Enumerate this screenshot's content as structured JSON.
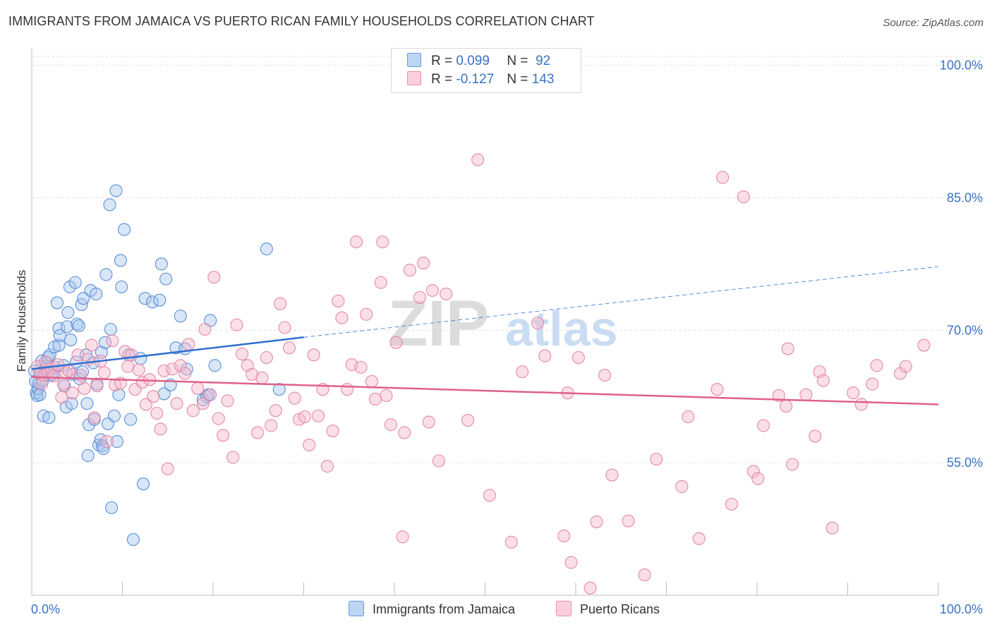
{
  "title": "IMMIGRANTS FROM JAMAICA VS PUERTO RICAN FAMILY HOUSEHOLDS CORRELATION CHART",
  "source": "Source: ZipAtlas.com",
  "watermark": {
    "zip": "ZIP",
    "atlas": "atlas"
  },
  "legend": [
    {
      "r_label": "R =",
      "r_value": "0.099",
      "n_label": "N =",
      "n_value": "92",
      "color": "#a9c8f0"
    },
    {
      "r_label": "R =",
      "r_value": "-0.127",
      "n_label": "N =",
      "n_value": "143",
      "color": "#f7b9cc"
    }
  ],
  "bottom_legend": [
    {
      "label": "Immigrants from Jamaica",
      "color": "#a9c8f0"
    },
    {
      "label": "Puerto Ricans",
      "color": "#f7b9cc"
    }
  ],
  "colors": {
    "blue_fill": "#a9c8f0",
    "blue_stroke": "#5b8fd6",
    "blue_line": "#2f6fce",
    "pink_fill": "#f7b9cc",
    "pink_stroke": "#e389a6",
    "pink_line": "#e0608c",
    "tick_label": "#3a72c8"
  },
  "chart_data": {
    "type": "scatter",
    "ylabel": "Family Households",
    "xlim": [
      0,
      100
    ],
    "ylim": [
      40,
      101
    ],
    "x_tick_labels": [
      "0.0%",
      "100.0%"
    ],
    "y_ticks": [
      55,
      70,
      85,
      100
    ],
    "y_tick_labels": [
      "55.0%",
      "70.0%",
      "85.0%",
      "100.0%"
    ],
    "grid": "horizontal dashed",
    "series": [
      {
        "name": "Immigrants from Jamaica",
        "color": "#a9c8f0",
        "trend": {
          "x": [
            0,
            30
          ],
          "y": [
            65.6,
            69.2
          ],
          "dashed_extension": {
            "x": [
              30,
              100
            ],
            "y": [
              69.2,
              77.2
            ]
          }
        },
        "points": [
          [
            0.3,
            65.4
          ],
          [
            0.4,
            64.2
          ],
          [
            0.5,
            62.9
          ],
          [
            0.6,
            62.6
          ],
          [
            0.7,
            63.4
          ],
          [
            0.8,
            64.0
          ],
          [
            0.9,
            62.7
          ],
          [
            1.0,
            65.1
          ],
          [
            1.1,
            66.5
          ],
          [
            1.2,
            64.3
          ],
          [
            1.3,
            60.3
          ],
          [
            1.5,
            65.6
          ],
          [
            1.6,
            65.9
          ],
          [
            1.7,
            66.3
          ],
          [
            1.8,
            66.9
          ],
          [
            1.9,
            60.1
          ],
          [
            2.0,
            67.2
          ],
          [
            2.1,
            64.9
          ],
          [
            2.3,
            65.0
          ],
          [
            2.5,
            68.1
          ],
          [
            2.6,
            65.8
          ],
          [
            2.8,
            73.1
          ],
          [
            3.0,
            68.3
          ],
          [
            3.0,
            70.2
          ],
          [
            3.1,
            69.4
          ],
          [
            3.5,
            66.0
          ],
          [
            3.6,
            63.7
          ],
          [
            3.8,
            61.3
          ],
          [
            3.9,
            70.4
          ],
          [
            4.0,
            72.0
          ],
          [
            4.2,
            74.9
          ],
          [
            4.3,
            68.9
          ],
          [
            4.4,
            61.7
          ],
          [
            4.5,
            65.0
          ],
          [
            4.8,
            75.4
          ],
          [
            4.9,
            66.4
          ],
          [
            5.0,
            70.7
          ],
          [
            5.2,
            70.5
          ],
          [
            5.3,
            64.5
          ],
          [
            5.5,
            72.9
          ],
          [
            5.6,
            65.3
          ],
          [
            5.7,
            73.6
          ],
          [
            6.0,
            67.2
          ],
          [
            6.1,
            61.7
          ],
          [
            6.2,
            55.8
          ],
          [
            6.3,
            59.3
          ],
          [
            6.5,
            74.5
          ],
          [
            6.8,
            66.3
          ],
          [
            6.9,
            59.9
          ],
          [
            7.1,
            74.1
          ],
          [
            7.2,
            63.9
          ],
          [
            7.4,
            57.0
          ],
          [
            7.6,
            57.6
          ],
          [
            7.7,
            67.5
          ],
          [
            7.8,
            56.9
          ],
          [
            7.9,
            56.6
          ],
          [
            8.1,
            68.6
          ],
          [
            8.2,
            76.3
          ],
          [
            8.4,
            59.4
          ],
          [
            8.6,
            84.2
          ],
          [
            8.7,
            70.1
          ],
          [
            8.8,
            49.9
          ],
          [
            9.1,
            60.3
          ],
          [
            9.3,
            85.8
          ],
          [
            9.4,
            57.4
          ],
          [
            9.6,
            62.7
          ],
          [
            9.8,
            77.9
          ],
          [
            9.9,
            74.9
          ],
          [
            10.2,
            81.4
          ],
          [
            10.7,
            67.2
          ],
          [
            10.9,
            59.9
          ],
          [
            11.2,
            46.3
          ],
          [
            12.0,
            66.8
          ],
          [
            12.3,
            52.6
          ],
          [
            12.5,
            73.6
          ],
          [
            13.3,
            73.2
          ],
          [
            14.1,
            73.4
          ],
          [
            14.3,
            77.5
          ],
          [
            14.6,
            62.8
          ],
          [
            14.8,
            75.8
          ],
          [
            15.3,
            63.8
          ],
          [
            15.9,
            68.0
          ],
          [
            16.4,
            71.6
          ],
          [
            16.9,
            67.9
          ],
          [
            17.1,
            65.6
          ],
          [
            18.9,
            62.1
          ],
          [
            19.3,
            62.5
          ],
          [
            19.5,
            62.7
          ],
          [
            19.7,
            71.1
          ],
          [
            20.2,
            66.0
          ],
          [
            25.9,
            79.2
          ],
          [
            27.3,
            63.3
          ]
        ]
      },
      {
        "name": "Puerto Ricans",
        "color": "#f7b9cc",
        "trend": {
          "x": [
            0,
            100
          ],
          "y": [
            64.7,
            61.6
          ]
        },
        "points": [
          [
            0.6,
            65.9
          ],
          [
            0.9,
            65.1
          ],
          [
            1.1,
            63.9
          ],
          [
            1.3,
            64.9
          ],
          [
            1.5,
            66.4
          ],
          [
            1.8,
            65.3
          ],
          [
            2.1,
            65.7
          ],
          [
            2.4,
            64.8
          ],
          [
            2.9,
            66.1
          ],
          [
            3.3,
            62.4
          ],
          [
            3.5,
            63.9
          ],
          [
            3.8,
            65.2
          ],
          [
            4.1,
            65.4
          ],
          [
            4.5,
            62.9
          ],
          [
            5.1,
            67.2
          ],
          [
            5.4,
            64.9
          ],
          [
            5.8,
            63.4
          ],
          [
            6.2,
            66.7
          ],
          [
            6.6,
            68.3
          ],
          [
            6.9,
            60.1
          ],
          [
            7.2,
            63.7
          ],
          [
            7.6,
            66.5
          ],
          [
            8.0,
            65.2
          ],
          [
            8.3,
            57.4
          ],
          [
            8.9,
            68.8
          ],
          [
            9.2,
            63.8
          ],
          [
            9.8,
            64.0
          ],
          [
            10.3,
            67.6
          ],
          [
            10.6,
            65.9
          ],
          [
            11.0,
            67.2
          ],
          [
            11.4,
            63.3
          ],
          [
            11.8,
            65.5
          ],
          [
            12.2,
            64.1
          ],
          [
            12.6,
            61.6
          ],
          [
            13.0,
            64.4
          ],
          [
            13.4,
            62.5
          ],
          [
            13.8,
            60.6
          ],
          [
            14.2,
            58.8
          ],
          [
            14.6,
            65.4
          ],
          [
            15.0,
            54.3
          ],
          [
            15.5,
            65.6
          ],
          [
            16.0,
            61.7
          ],
          [
            16.4,
            66.0
          ],
          [
            16.9,
            65.1
          ],
          [
            17.3,
            68.4
          ],
          [
            17.8,
            60.9
          ],
          [
            18.3,
            63.4
          ],
          [
            18.9,
            61.7
          ],
          [
            19.1,
            70.1
          ],
          [
            19.7,
            62.7
          ],
          [
            20.1,
            76.0
          ],
          [
            20.6,
            60.0
          ],
          [
            21.1,
            58.1
          ],
          [
            21.6,
            62.0
          ],
          [
            22.2,
            55.6
          ],
          [
            22.6,
            70.6
          ],
          [
            23.2,
            67.3
          ],
          [
            23.8,
            66.0
          ],
          [
            24.3,
            65.0
          ],
          [
            24.9,
            58.4
          ],
          [
            25.4,
            64.6
          ],
          [
            25.9,
            66.9
          ],
          [
            26.4,
            59.2
          ],
          [
            26.9,
            60.9
          ],
          [
            27.4,
            73.0
          ],
          [
            27.9,
            70.3
          ],
          [
            28.4,
            68.0
          ],
          [
            29.0,
            62.3
          ],
          [
            29.5,
            59.9
          ],
          [
            30.1,
            60.2
          ],
          [
            30.6,
            57.0
          ],
          [
            31.1,
            67.2
          ],
          [
            31.6,
            60.3
          ],
          [
            32.1,
            63.3
          ],
          [
            32.6,
            54.6
          ],
          [
            33.2,
            58.6
          ],
          [
            33.8,
            73.3
          ],
          [
            34.2,
            71.4
          ],
          [
            34.8,
            63.3
          ],
          [
            35.3,
            66.1
          ],
          [
            35.8,
            80.0
          ],
          [
            36.3,
            65.8
          ],
          [
            36.9,
            71.8
          ],
          [
            37.5,
            64.2
          ],
          [
            37.9,
            62.2
          ],
          [
            38.5,
            75.4
          ],
          [
            38.7,
            80.0
          ],
          [
            39.1,
            62.6
          ],
          [
            39.6,
            59.3
          ],
          [
            40.2,
            68.6
          ],
          [
            40.9,
            46.6
          ],
          [
            41.1,
            58.4
          ],
          [
            41.7,
            76.8
          ],
          [
            42.8,
            73.7
          ],
          [
            43.2,
            77.6
          ],
          [
            43.8,
            59.6
          ],
          [
            44.2,
            74.5
          ],
          [
            44.9,
            55.2
          ],
          [
            45.7,
            74.1
          ],
          [
            48.1,
            59.8
          ],
          [
            49.2,
            89.3
          ],
          [
            50.5,
            51.3
          ],
          [
            52.9,
            46.0
          ],
          [
            54.1,
            65.3
          ],
          [
            55.8,
            70.8
          ],
          [
            56.6,
            67.1
          ],
          [
            58.7,
            46.7
          ],
          [
            59.1,
            62.9
          ],
          [
            59.5,
            43.7
          ],
          [
            60.3,
            66.9
          ],
          [
            61.6,
            40.8
          ],
          [
            62.3,
            48.3
          ],
          [
            63.2,
            64.9
          ],
          [
            64.0,
            53.6
          ],
          [
            65.8,
            48.4
          ],
          [
            67.6,
            42.3
          ],
          [
            68.9,
            55.4
          ],
          [
            71.7,
            52.3
          ],
          [
            72.4,
            60.2
          ],
          [
            73.6,
            46.4
          ],
          [
            75.6,
            63.3
          ],
          [
            76.2,
            87.3
          ],
          [
            77.2,
            50.3
          ],
          [
            78.5,
            85.1
          ],
          [
            79.6,
            54.0
          ],
          [
            80.1,
            53.2
          ],
          [
            80.7,
            59.2
          ],
          [
            82.4,
            62.6
          ],
          [
            83.2,
            61.4
          ],
          [
            83.4,
            67.9
          ],
          [
            83.9,
            54.8
          ],
          [
            85.4,
            62.7
          ],
          [
            86.4,
            58.0
          ],
          [
            86.9,
            65.3
          ],
          [
            87.3,
            64.3
          ],
          [
            88.3,
            47.6
          ],
          [
            90.6,
            62.9
          ],
          [
            91.5,
            61.6
          ],
          [
            92.7,
            63.9
          ],
          [
            93.2,
            66.0
          ],
          [
            95.8,
            65.1
          ],
          [
            96.4,
            65.9
          ],
          [
            98.4,
            68.3
          ]
        ]
      }
    ]
  }
}
